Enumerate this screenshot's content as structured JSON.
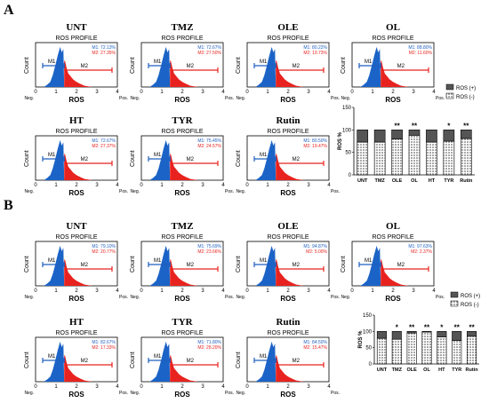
{
  "panels": [
    {
      "letter": "A",
      "histograms": [
        {
          "sample": "UNT",
          "title": "ROS PROFILE",
          "m1": "M1: 72.13%",
          "m2": "M2: 27.35%"
        },
        {
          "sample": "TMZ",
          "title": "ROS PROFILE",
          "m1": "M1: 72.67%",
          "m2": "M2: 27.50%"
        },
        {
          "sample": "OLE",
          "title": "ROS PROFILE",
          "m1": "M1: 80.22%",
          "m2": "M2: 19.73%"
        },
        {
          "sample": "OL",
          "title": "ROS PROFILE",
          "m1": "M1: 88.80%",
          "m2": "M2: 11.60%"
        },
        {
          "sample": "HT",
          "title": "ROS PROFILE",
          "m1": "M1: 72.67%",
          "m2": "M2: 27.37%"
        },
        {
          "sample": "TYR",
          "title": "ROS PROFILE",
          "m1": "M1: 75.45%",
          "m2": "M2: 24.57%"
        },
        {
          "sample": "Rutin",
          "title": "ROS PROFILE",
          "m1": "M1: 80.50%",
          "m2": "M2: 19.47%"
        }
      ]
    },
    {
      "letter": "B",
      "histograms": [
        {
          "sample": "UNT",
          "title": "ROS PROFILE",
          "m1": "M1: 79.10%",
          "m2": "M2: 20.77%"
        },
        {
          "sample": "TMZ",
          "title": "ROS PROFILE",
          "m1": "M1: 75.69%",
          "m2": "M2: 23.66%"
        },
        {
          "sample": "OLE",
          "title": "ROS PROFILE",
          "m1": "M1: 94.87%",
          "m2": "M2: 5.00%"
        },
        {
          "sample": "OL",
          "title": "ROS PROFILE",
          "m1": "M1: 97.63%",
          "m2": "M2: 2.37%"
        },
        {
          "sample": "HT",
          "title": "ROS PROFILE",
          "m1": "M1: 82.67%",
          "m2": "M2: 17.33%"
        },
        {
          "sample": "TYR",
          "title": "ROS PROFILE",
          "m1": "M1: 71.80%",
          "m2": "M2: 28.20%"
        },
        {
          "sample": "Rutin",
          "title": "ROS PROFILE",
          "m1": "M1: 84.50%",
          "m2": "M2: 15.47%"
        }
      ]
    }
  ],
  "histogram_axes": {
    "xlabel": "ROS",
    "ylabel": "Count",
    "xticks": [
      "0",
      "1",
      "2",
      "3",
      "4"
    ],
    "neg_label": "Neg.",
    "pos_label": "Pos.",
    "gate1_label": "M1",
    "gate2_label": "M2",
    "gate1_color": "#1f5fbf",
    "gate2_color": "#e8231f",
    "fill_neg_color": "#1b63c6",
    "fill_pos_color": "#e8231f"
  },
  "chart_data": [
    {
      "type": "bar",
      "stacked": true,
      "panel": "A",
      "categories": [
        "UNT",
        "TMZ",
        "OLE",
        "OL",
        "HT",
        "TYR",
        "Rutin"
      ],
      "series": [
        {
          "name": "ROS (+)",
          "values": [
            27,
            27,
            20,
            12,
            27,
            25,
            19
          ],
          "color": "#555555"
        },
        {
          "name": "ROS (-)",
          "values": [
            73,
            73,
            80,
            88,
            73,
            75,
            81
          ],
          "color": "#cfcfcf"
        }
      ],
      "significance": [
        "",
        "",
        "**",
        "**",
        "",
        "*",
        "**"
      ],
      "ylabel": "ROS %",
      "ylim": [
        0,
        150
      ],
      "yticks": [
        0,
        50,
        100,
        150
      ],
      "legend": "top-right"
    },
    {
      "type": "bar",
      "stacked": true,
      "panel": "B",
      "categories": [
        "UNT",
        "TMZ",
        "OLE",
        "OL",
        "HT",
        "TYR",
        "Rutin"
      ],
      "series": [
        {
          "name": "ROS (+)",
          "values": [
            21,
            24,
            5,
            2,
            17,
            28,
            15
          ],
          "color": "#555555"
        },
        {
          "name": "ROS (-)",
          "values": [
            79,
            76,
            95,
            98,
            83,
            72,
            85
          ],
          "color": "#cfcfcf"
        }
      ],
      "significance": [
        "",
        "*",
        "**",
        "**",
        "*",
        "**",
        "**"
      ],
      "ylabel": "ROS %",
      "ylim": [
        0,
        150
      ],
      "yticks": [
        0,
        50,
        100,
        150
      ],
      "legend": "top-right"
    }
  ]
}
